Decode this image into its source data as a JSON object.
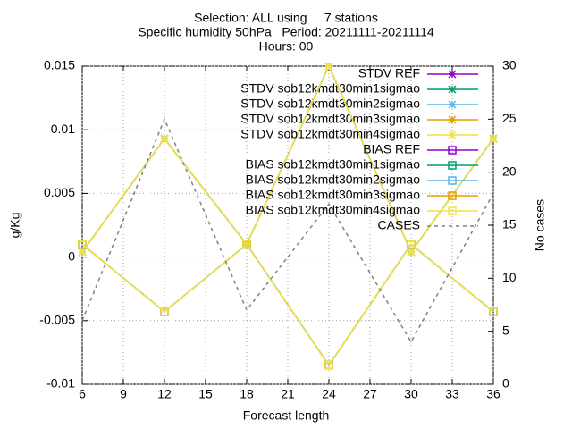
{
  "chart_data": {
    "type": "line",
    "title": [
      "Selection: ALL using     7 stations",
      "Specific humidity 50hPa   Period: 20211111-20211114",
      "Hours: 00"
    ],
    "xlabel": "Forecast length",
    "ylabel": "g/Kg",
    "y2label": "No cases",
    "x": [
      6,
      12,
      18,
      24,
      30,
      36
    ],
    "xlim": [
      6,
      36
    ],
    "xticks": [
      6,
      9,
      12,
      15,
      18,
      21,
      24,
      27,
      30,
      33,
      36
    ],
    "ylim": [
      -0.01,
      0.015
    ],
    "yticks": [
      -0.01,
      -0.005,
      0,
      0.005,
      0.01,
      0.015
    ],
    "y2lim": [
      0,
      30
    ],
    "y2ticks": [
      0,
      5,
      10,
      15,
      20,
      25,
      30
    ],
    "grid": true,
    "legend": "top-right",
    "series": [
      {
        "name": "STDV REF",
        "color": "#9400d3",
        "marker": "x",
        "values": [
          0.0004,
          0.0093,
          0.001,
          0.015,
          0.0004,
          0.0093
        ]
      },
      {
        "name": "STDV sob12kmdt30min1sigmao",
        "color": "#009e73",
        "marker": "x",
        "values": [
          0.0004,
          0.0093,
          0.001,
          0.015,
          0.0004,
          0.0093
        ]
      },
      {
        "name": "STDV sob12kmdt30min2sigmao",
        "color": "#56b4e9",
        "marker": "x",
        "values": [
          0.0004,
          0.0093,
          0.001,
          0.015,
          0.0004,
          0.0093
        ]
      },
      {
        "name": "STDV sob12kmdt30min3sigmao",
        "color": "#e69f00",
        "marker": "x",
        "values": [
          0.0004,
          0.0093,
          0.001,
          0.015,
          0.0004,
          0.0093
        ]
      },
      {
        "name": "STDV sob12kmdt30min4sigmao",
        "color": "#f0e442",
        "marker": "x",
        "values": [
          0.0004,
          0.0093,
          0.001,
          0.015,
          0.0004,
          0.0093
        ]
      },
      {
        "name": "BIAS REF",
        "color": "#9400d3",
        "marker": "square",
        "values": [
          0.001,
          -0.0043,
          0.001,
          -0.0085,
          0.001,
          -0.0043
        ]
      },
      {
        "name": "BIAS sob12kmdt30min1sigmao",
        "color": "#009e73",
        "marker": "square",
        "values": [
          0.001,
          -0.0043,
          0.001,
          -0.0085,
          0.001,
          -0.0043
        ]
      },
      {
        "name": "BIAS sob12kmdt30min2sigmao",
        "color": "#56b4e9",
        "marker": "square",
        "values": [
          0.001,
          -0.0043,
          0.001,
          -0.0085,
          0.001,
          -0.0043
        ]
      },
      {
        "name": "BIAS sob12kmdt30min3sigmao",
        "color": "#e69f00",
        "marker": "square",
        "values": [
          0.001,
          -0.0043,
          0.001,
          -0.0085,
          0.001,
          -0.0043
        ]
      },
      {
        "name": "BIAS sob12kmdt30min4sigmao",
        "color": "#f0e442",
        "marker": "square",
        "values": [
          0.001,
          -0.0043,
          0.001,
          -0.0085,
          0.001,
          -0.0043
        ]
      },
      {
        "name": "CASES",
        "color": "#808080",
        "linestyle": "dashed",
        "axis": "y2",
        "values": [
          6,
          25,
          7,
          17,
          4,
          18
        ]
      }
    ]
  }
}
